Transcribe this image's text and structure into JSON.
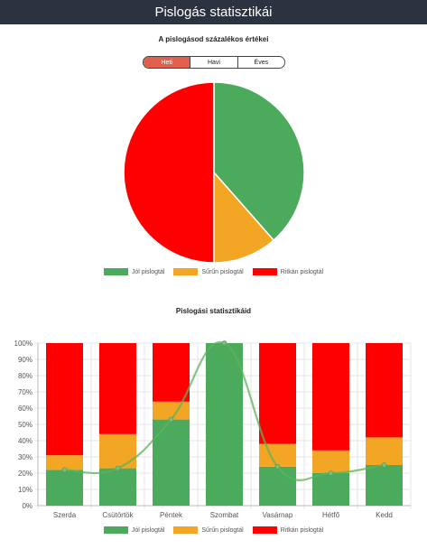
{
  "header": {
    "title": "Pislogás statisztikái"
  },
  "pie_section": {
    "title": "A pislogásod százalékos értékei",
    "tabs": [
      {
        "label": "Heti",
        "active": true
      },
      {
        "label": "Havi",
        "active": false
      },
      {
        "label": "Éves",
        "active": false
      }
    ]
  },
  "bar_section": {
    "title": "Pislogási statisztikáid"
  },
  "colors": {
    "good": "#4caa5c",
    "frequent": "#f2a623",
    "rare": "#ff0000",
    "line": "#5cb35c"
  },
  "legend": [
    "Jól pislogtál",
    "Sűrűn pislogtál",
    "Ritkán pislogtál"
  ],
  "chart_data": [
    {
      "type": "pie",
      "title": "A pislogásod százalékos értékei",
      "labels": [
        "Jól pislogtál",
        "Sűrűn pislogtál",
        "Ritkán pislogtál"
      ],
      "values": [
        38.5,
        11.5,
        50.0
      ],
      "legend_position": "bottom"
    },
    {
      "type": "bar",
      "stacked": true,
      "title": "Pislogási statisztikáid",
      "categories": [
        "Szerda",
        "Csütörtök",
        "Péntek",
        "Szombat",
        "Vasárnap",
        "Hétfő",
        "Kedd"
      ],
      "series": [
        {
          "name": "Jól pislogtál",
          "values": [
            22,
            23,
            53,
            100,
            24,
            20,
            25
          ]
        },
        {
          "name": "Sűrűn pislogtál",
          "values": [
            9,
            21,
            11,
            0,
            14,
            14,
            17
          ]
        },
        {
          "name": "Ritkán pislogtál",
          "values": [
            69,
            56,
            36,
            0,
            62,
            66,
            58
          ]
        }
      ],
      "line": {
        "values": [
          22,
          23,
          53,
          100,
          24,
          20,
          25
        ]
      },
      "ylim": [
        0,
        100
      ],
      "yticks": [
        "0%",
        "10%",
        "20%",
        "30%",
        "40%",
        "50%",
        "60%",
        "70%",
        "80%",
        "90%",
        "100%"
      ],
      "grid": true,
      "legend_position": "bottom"
    }
  ]
}
